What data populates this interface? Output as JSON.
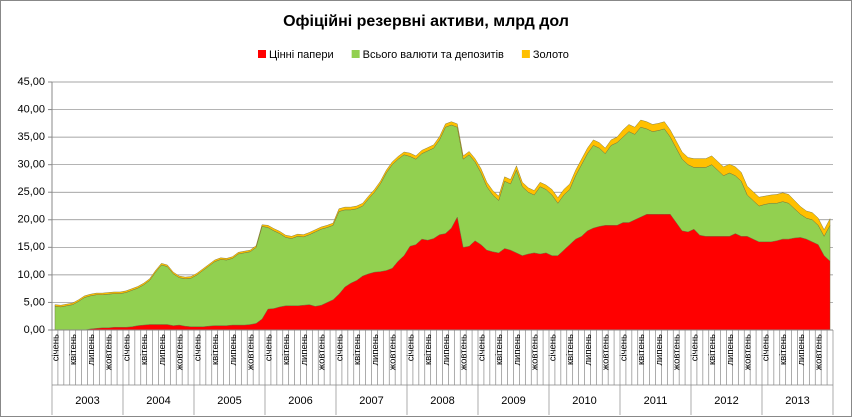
{
  "chart_data": {
    "type": "stacked_area",
    "title": "Офіційні резервні активи, млрд дол",
    "categories": [
      "січень",
      null,
      null,
      "квітень",
      null,
      null,
      "липень",
      null,
      null,
      "жовтень",
      null,
      null,
      "січень",
      null,
      null,
      "квітень",
      null,
      null,
      "липень",
      null,
      null,
      "жовтень",
      null,
      null,
      "січень",
      null,
      null,
      "квітень",
      null,
      null,
      "липень",
      null,
      null,
      "жовтень",
      null,
      null,
      "січень",
      null,
      null,
      "квітень",
      null,
      null,
      "липень",
      null,
      null,
      "жовтень",
      null,
      null,
      "січень",
      null,
      null,
      "квітень",
      null,
      null,
      "липень",
      null,
      null,
      "жовтень",
      null,
      null,
      "січень",
      null,
      null,
      "квітень",
      null,
      null,
      "липень",
      null,
      null,
      "жовтень",
      null,
      null,
      "січень",
      null,
      null,
      "квітень",
      null,
      null,
      "липень",
      null,
      null,
      "жовтень",
      null,
      null,
      "січень",
      null,
      null,
      "квітень",
      null,
      null,
      "липень",
      null,
      null,
      "жовтень",
      null,
      null,
      "січень",
      null,
      null,
      "квітень",
      null,
      null,
      "липень",
      null,
      null,
      "жовтень",
      null,
      null,
      "січень",
      null,
      null,
      "квітень",
      null,
      null,
      "липень",
      null,
      null,
      "жовтень",
      null,
      null,
      "січень",
      null,
      null,
      "квітень",
      null,
      null,
      "липень",
      null,
      null,
      "жовтень",
      null,
      null
    ],
    "years": [
      "2003",
      "2004",
      "2005",
      "2006",
      "2007",
      "2008",
      "2009",
      "2010",
      "2011",
      "2012",
      "2013"
    ],
    "series": [
      {
        "name": "Цінні папери",
        "color": "#ff0000",
        "values": [
          0,
          0,
          0,
          0,
          0,
          0,
          0.2,
          0.3,
          0.4,
          0.4,
          0.5,
          0.5,
          0.5,
          0.6,
          0.8,
          0.9,
          1.0,
          1.0,
          1.0,
          1.0,
          0.8,
          0.9,
          0.7,
          0.6,
          0.6,
          0.6,
          0.7,
          0.8,
          0.8,
          0.8,
          0.9,
          0.9,
          0.9,
          1.0,
          1.2,
          2.0,
          3.8,
          3.9,
          4.2,
          4.4,
          4.4,
          4.4,
          4.5,
          4.6,
          4.3,
          4.5,
          5.0,
          5.5,
          6.5,
          7.8,
          8.5,
          9.0,
          9.8,
          10.2,
          10.5,
          10.6,
          10.8,
          11.2,
          12.5,
          13.5,
          15.2,
          15.5,
          16.5,
          16.3,
          16.6,
          17.3,
          17.5,
          18.5,
          20.5,
          15.0,
          15.2,
          16.2,
          15.5,
          14.5,
          14.2,
          14.0,
          14.8,
          14.5,
          14.0,
          13.5,
          13.8,
          14.0,
          13.8,
          14.0,
          13.5,
          13.5,
          14.5,
          15.5,
          16.5,
          17.0,
          18.0,
          18.5,
          18.8,
          19.0,
          19.0,
          19.0,
          19.5,
          19.5,
          20.0,
          20.5,
          21.0,
          21.0,
          21.0,
          21.0,
          21.0,
          19.5,
          18.0,
          17.8,
          18.3,
          17.2,
          17.0,
          17.0,
          17.0,
          17.0,
          17.0,
          17.5,
          17.0,
          17.0,
          16.5,
          16.0,
          16.0,
          16.0,
          16.2,
          16.5,
          16.5,
          16.7,
          16.8,
          16.5,
          16.0,
          15.5,
          13.5,
          12.5
        ]
      },
      {
        "name": "Всього валюти та депозитів",
        "color": "#92d050",
        "values": [
          4.3,
          4.2,
          4.4,
          4.6,
          5.2,
          5.9,
          6.0,
          6.1,
          6.0,
          6.1,
          6.1,
          6.1,
          6.3,
          6.6,
          6.8,
          7.3,
          8.0,
          9.5,
          10.8,
          10.5,
          9.4,
          8.6,
          8.6,
          8.8,
          9.4,
          10.2,
          10.9,
          11.6,
          12.0,
          11.9,
          12.1,
          12.9,
          13.1,
          13.2,
          13.8,
          16.8,
          14.8,
          14.1,
          13.3,
          12.4,
          12.2,
          12.6,
          12.4,
          12.7,
          13.5,
          13.8,
          13.6,
          13.5,
          15.0,
          14.0,
          13.3,
          13.0,
          12.7,
          13.6,
          14.5,
          15.9,
          17.7,
          18.8,
          18.5,
          18.3,
          16.3,
          15.5,
          15.5,
          16.2,
          16.4,
          17.2,
          19.3,
          18.7,
          16.3,
          16.0,
          16.6,
          14.3,
          13.0,
          11.5,
          10.3,
          9.5,
          12.2,
          12.0,
          15.0,
          12.5,
          11.2,
          10.5,
          12.2,
          11.5,
          11.0,
          9.5,
          10.0,
          10.0,
          11.5,
          13.0,
          14.0,
          15.0,
          14.2,
          13.0,
          14.5,
          15.0,
          15.5,
          16.5,
          15.5,
          16.3,
          15.5,
          15.0,
          15.2,
          15.5,
          14.0,
          13.5,
          13.0,
          12.2,
          11.2,
          12.3,
          12.5,
          13.0,
          12.0,
          11.0,
          11.5,
          10.5,
          10.0,
          7.5,
          7.0,
          6.5,
          6.8,
          7.0,
          6.8,
          6.8,
          6.5,
          5.3,
          4.2,
          3.8,
          4.0,
          3.5,
          3.5,
          6.5
        ]
      },
      {
        "name": "Золото",
        "color": "#ffc000",
        "values": [
          0.3,
          0.3,
          0.3,
          0.3,
          0.3,
          0.3,
          0.3,
          0.3,
          0.3,
          0.3,
          0.3,
          0.3,
          0.3,
          0.3,
          0.3,
          0.3,
          0.3,
          0.3,
          0.3,
          0.3,
          0.3,
          0.3,
          0.3,
          0.3,
          0.3,
          0.3,
          0.3,
          0.3,
          0.3,
          0.3,
          0.3,
          0.3,
          0.3,
          0.3,
          0.3,
          0.3,
          0.4,
          0.4,
          0.4,
          0.4,
          0.4,
          0.4,
          0.4,
          0.4,
          0.4,
          0.4,
          0.4,
          0.4,
          0.5,
          0.5,
          0.5,
          0.5,
          0.5,
          0.5,
          0.5,
          0.5,
          0.5,
          0.5,
          0.5,
          0.5,
          0.6,
          0.6,
          0.6,
          0.6,
          0.6,
          0.6,
          0.6,
          0.6,
          0.6,
          0.6,
          0.6,
          0.6,
          0.8,
          0.8,
          0.8,
          0.8,
          0.8,
          0.8,
          0.8,
          0.8,
          0.8,
          0.8,
          0.8,
          0.8,
          1.0,
          1.0,
          1.0,
          1.0,
          1.0,
          1.0,
          1.0,
          1.0,
          1.0,
          1.0,
          1.0,
          1.0,
          1.3,
          1.3,
          1.3,
          1.3,
          1.3,
          1.3,
          1.3,
          1.3,
          1.3,
          1.3,
          1.3,
          1.3,
          1.6,
          1.6,
          1.6,
          1.6,
          1.6,
          1.6,
          1.6,
          1.6,
          1.6,
          1.6,
          1.6,
          1.6,
          1.5,
          1.5,
          1.6,
          1.6,
          1.6,
          1.5,
          1.4,
          1.3,
          1.3,
          1.3,
          1.2,
          1.2
        ]
      }
    ],
    "ylim": [
      0,
      45
    ],
    "yticks": [
      {
        "value": 0,
        "label": "0,00"
      },
      {
        "value": 5,
        "label": "5,00"
      },
      {
        "value": 10,
        "label": "10,00"
      },
      {
        "value": 15,
        "label": "15,00"
      },
      {
        "value": 20,
        "label": "20,00"
      },
      {
        "value": 25,
        "label": "25,00"
      },
      {
        "value": 30,
        "label": "30,00"
      },
      {
        "value": 35,
        "label": "35,00"
      },
      {
        "value": 40,
        "label": "40,00"
      },
      {
        "value": 45,
        "label": "45,00"
      }
    ],
    "grid": true
  }
}
